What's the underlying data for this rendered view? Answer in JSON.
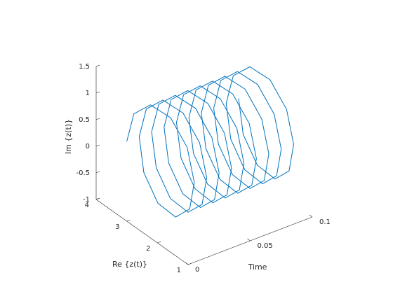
{
  "chart_data": {
    "type": "line3d",
    "xlabel": "Time",
    "ylabel": "Re {z(t)}",
    "zlabel": "Im {z(t)}",
    "xlim": [
      0,
      0.1
    ],
    "xticks": [
      0,
      0.05,
      0.1
    ],
    "ylim": [
      1,
      4
    ],
    "yticks": [
      1,
      2,
      3,
      4
    ],
    "zlim": [
      -1,
      1.5
    ],
    "zticks": [
      -1,
      -0.5,
      0,
      0.5,
      1,
      1.5
    ],
    "series": [
      {
        "color": "#0072bd",
        "x": [
          0,
          0.001,
          0.002,
          0.003,
          0.004,
          0.005,
          0.006,
          0.007,
          0.008,
          0.009,
          0.01,
          0.011,
          0.012,
          0.013,
          0.014,
          0.015,
          0.016,
          0.017,
          0.018,
          0.019,
          0.02,
          0.021,
          0.022,
          0.023,
          0.024,
          0.025,
          0.026,
          0.027,
          0.028,
          0.029,
          0.03,
          0.031,
          0.032,
          0.033,
          0.034,
          0.035,
          0.036,
          0.037,
          0.038,
          0.039,
          0.04,
          0.041,
          0.042,
          0.043,
          0.044,
          0.045,
          0.046,
          0.047,
          0.048,
          0.049,
          0.05,
          0.051,
          0.052,
          0.053,
          0.054,
          0.055,
          0.056,
          0.057,
          0.058,
          0.059,
          0.06,
          0.061,
          0.062,
          0.063,
          0.064,
          0.065,
          0.066,
          0.067,
          0.068,
          0.069,
          0.07,
          0.071,
          0.072,
          0.073,
          0.074,
          0.075,
          0.076,
          0.077,
          0.078,
          0.079,
          0.08,
          0.081,
          0.082,
          0.083,
          0.084,
          0.085,
          0.086,
          0.087,
          0.088,
          0.089,
          0.09
        ],
        "y": [
          3,
          2.809,
          2.309,
          1.691,
          1.191,
          1,
          1.191,
          1.691,
          2.309,
          2.809,
          3,
          2.809,
          2.309,
          1.691,
          1.191,
          1,
          1.191,
          1.691,
          2.309,
          2.809,
          3,
          2.809,
          2.309,
          1.691,
          1.191,
          1,
          1.191,
          1.691,
          2.309,
          2.809,
          3,
          2.809,
          2.309,
          1.691,
          1.191,
          1,
          1.191,
          1.691,
          2.309,
          2.809,
          3,
          2.809,
          2.309,
          1.691,
          1.191,
          1,
          1.191,
          1.691,
          2.309,
          2.809,
          3,
          2.809,
          2.309,
          1.691,
          1.191,
          1,
          1.191,
          1.691,
          2.309,
          2.809,
          3,
          2.809,
          2.309,
          1.691,
          1.191,
          1,
          1.191,
          1.691,
          2.309,
          2.809,
          3,
          2.809,
          2.309,
          1.691,
          1.191,
          1,
          1.191,
          1.691,
          2.309,
          2.809,
          3,
          2.809,
          2.309,
          1.691,
          1.191,
          1,
          1.191,
          1.691,
          2.309,
          2.809,
          3
        ],
        "z": [
          0.5,
          1.088,
          1.451,
          1.451,
          1.088,
          0.5,
          -0.088,
          -0.451,
          -0.451,
          -0.088,
          0.5,
          1.088,
          1.451,
          1.451,
          1.088,
          0.5,
          -0.088,
          -0.451,
          -0.451,
          -0.088,
          0.5,
          1.088,
          1.451,
          1.451,
          1.088,
          0.5,
          -0.088,
          -0.451,
          -0.451,
          -0.088,
          0.5,
          1.088,
          1.451,
          1.451,
          1.088,
          0.5,
          -0.088,
          -0.451,
          -0.451,
          -0.088,
          0.5,
          1.088,
          1.451,
          1.451,
          1.088,
          0.5,
          -0.088,
          -0.451,
          -0.451,
          -0.088,
          0.5,
          1.088,
          1.451,
          1.451,
          1.088,
          0.5,
          -0.088,
          -0.451,
          -0.451,
          -0.088,
          0.5,
          1.088,
          1.451,
          1.451,
          1.088,
          0.5,
          -0.088,
          -0.451,
          -0.451,
          -0.088,
          0.5,
          1.088,
          1.451,
          1.451,
          1.088,
          0.5,
          -0.088,
          -0.451,
          -0.451,
          -0.088,
          0.5,
          1.088,
          1.451,
          1.451,
          1.088,
          0.5,
          -0.088,
          -0.451,
          -0.451,
          -0.088,
          0.5
        ]
      }
    ]
  }
}
